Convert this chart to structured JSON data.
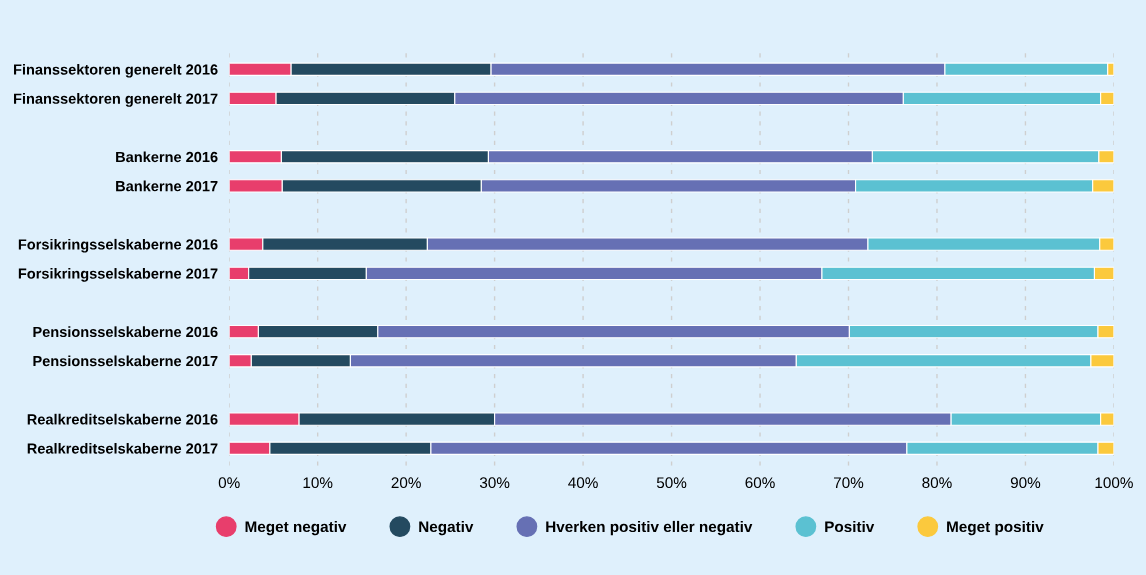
{
  "chart_data": {
    "type": "bar",
    "orientation": "horizontal",
    "stacked": true,
    "categories": [
      "Finanssektoren generelt 2016",
      "Finanssektoren generelt 2017",
      null,
      "Bankerne 2016",
      "Bankerne 2017",
      null,
      "Forsikringsselskaberne 2016",
      "Forsikringsselskaberne 2017",
      null,
      "Pensionsselskaberne 2016",
      "Pensionsselskaberne 2017",
      null,
      "Realkreditselskaberne 2016",
      "Realkreditselskaberne 2017"
    ],
    "series": [
      {
        "name": "Meget negativ",
        "color": "#e83e6c",
        "values": [
          7.0,
          5.3,
          null,
          5.9,
          6.0,
          null,
          3.8,
          2.2,
          null,
          3.3,
          2.5,
          null,
          7.9,
          4.6
        ]
      },
      {
        "name": "Negativ",
        "color": "#244a60",
        "values": [
          22.6,
          20.2,
          null,
          23.4,
          22.5,
          null,
          18.6,
          13.3,
          null,
          13.5,
          11.2,
          null,
          22.1,
          18.2
        ]
      },
      {
        "name": "Hverken positiv eller negativ",
        "color": "#6670b4",
        "values": [
          51.3,
          50.7,
          null,
          43.4,
          42.3,
          null,
          49.8,
          51.5,
          null,
          53.3,
          50.4,
          null,
          51.6,
          53.8
        ]
      },
      {
        "name": "Positiv",
        "color": "#5bc1d2",
        "values": [
          18.4,
          22.3,
          null,
          25.6,
          26.8,
          null,
          26.2,
          30.8,
          null,
          28.1,
          33.3,
          null,
          16.9,
          21.6
        ]
      },
      {
        "name": "Meget positiv",
        "color": "#fbc93d",
        "values": [
          0.7,
          1.5,
          null,
          1.7,
          2.4,
          null,
          1.6,
          2.2,
          null,
          1.8,
          2.6,
          null,
          1.5,
          1.8
        ]
      }
    ],
    "xlim": [
      0,
      100
    ],
    "xticks": [
      {
        "value": 0,
        "label": "0%"
      },
      {
        "value": 10,
        "label": "10%"
      },
      {
        "value": 20,
        "label": "20%"
      },
      {
        "value": 30,
        "label": "30%"
      },
      {
        "value": 40,
        "label": "40%"
      },
      {
        "value": 50,
        "label": "50%"
      },
      {
        "value": 60,
        "label": "60%"
      },
      {
        "value": 70,
        "label": "70%"
      },
      {
        "value": 80,
        "label": "80%"
      },
      {
        "value": 90,
        "label": "90%"
      },
      {
        "value": 100,
        "label": "100%"
      }
    ],
    "grid": "x",
    "legend": "bottom"
  }
}
